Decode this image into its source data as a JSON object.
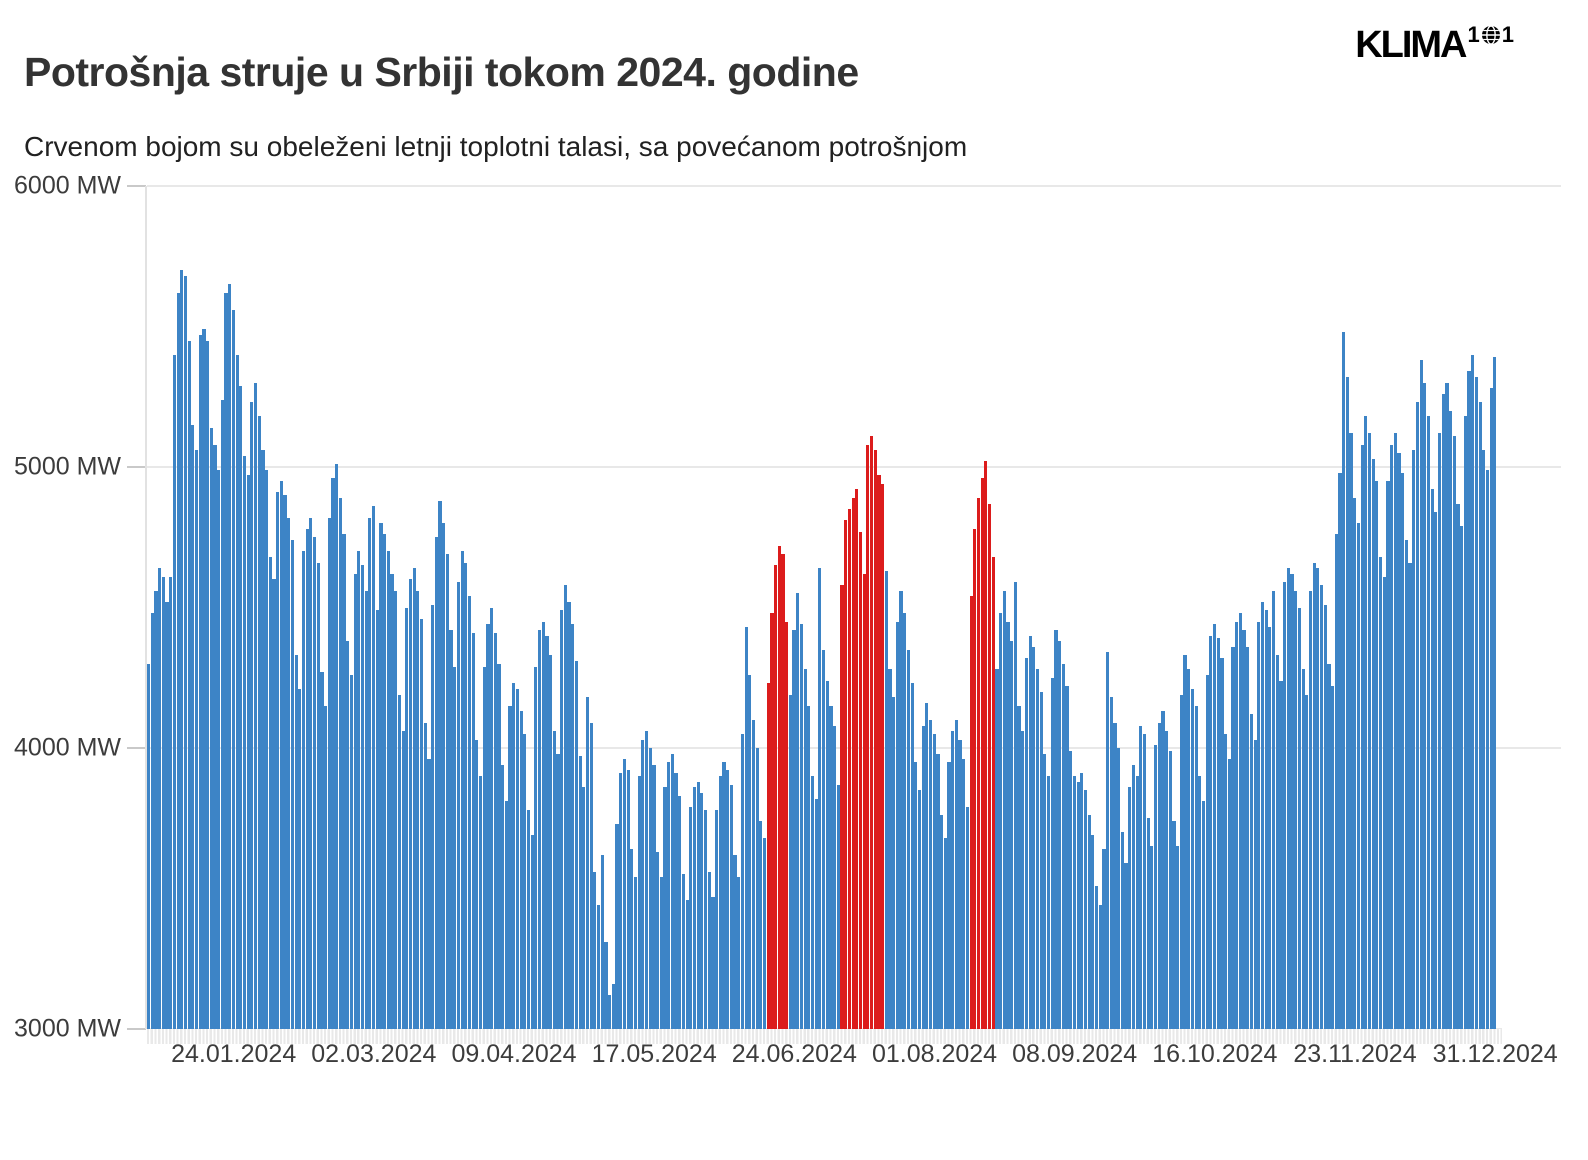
{
  "header": {
    "title": "Potrošnja struje u Srbiji tokom 2024. godine",
    "subtitle": "Crvenom bojom su obeleženi letnji toplotni talasi, sa povećanom potrošnjom",
    "logo": {
      "word": "KLIMA",
      "sup_left": "1",
      "sup_right": "1"
    }
  },
  "chart_data": {
    "type": "bar",
    "title": "Potrošnja struje u Srbiji tokom 2024. godine",
    "subtitle": "Crvenom bojom su obeleženi letnji toplotni talasi, sa povećanom potrošnjom",
    "unit": "MW",
    "x_start_date": "01.01.2024",
    "ylim": [
      3000,
      6000
    ],
    "grid": "horizontal",
    "legend": "none",
    "bar_colors": {
      "normal": "#3d84c6",
      "heatwave": "#dc1c1c"
    },
    "y_ticks": [
      {
        "value": 6000,
        "label": "6000 MW"
      },
      {
        "value": 5000,
        "label": "5000 MW"
      },
      {
        "value": 4000,
        "label": "4000 MW"
      },
      {
        "value": 3000,
        "label": "3000 MW"
      }
    ],
    "x_tick_labels": [
      {
        "day_of_year": 24,
        "label": "24.01.2024"
      },
      {
        "day_of_year": 62,
        "label": "02.03.2024"
      },
      {
        "day_of_year": 100,
        "label": "09.04.2024"
      },
      {
        "day_of_year": 138,
        "label": "17.05.2024"
      },
      {
        "day_of_year": 176,
        "label": "24.06.2024"
      },
      {
        "day_of_year": 214,
        "label": "01.08.2024"
      },
      {
        "day_of_year": 252,
        "label": "08.09.2024"
      },
      {
        "day_of_year": 290,
        "label": "16.10.2024"
      },
      {
        "day_of_year": 328,
        "label": "23.11.2024"
      },
      {
        "day_of_year": 366,
        "label": "31.12.2024"
      }
    ],
    "heatwave_day_ranges": [
      [
        169,
        174
      ],
      [
        189,
        200
      ],
      [
        224,
        230
      ]
    ],
    "values_daily_mw": [
      4300,
      4480,
      4560,
      4640,
      4610,
      4520,
      4610,
      5400,
      5620,
      5700,
      5680,
      5450,
      5150,
      5060,
      5470,
      5490,
      5450,
      5140,
      5080,
      4990,
      5240,
      5620,
      5650,
      5560,
      5400,
      5290,
      5040,
      4970,
      5230,
      5300,
      5180,
      5060,
      4990,
      4680,
      4600,
      4910,
      4950,
      4900,
      4820,
      4740,
      4330,
      4210,
      4700,
      4780,
      4820,
      4750,
      4660,
      4270,
      4150,
      4820,
      4960,
      5010,
      4890,
      4760,
      4380,
      4260,
      4620,
      4700,
      4650,
      4560,
      4820,
      4860,
      4490,
      4800,
      4760,
      4700,
      4620,
      4560,
      4190,
      4060,
      4500,
      4600,
      4640,
      4560,
      4460,
      4090,
      3960,
      4510,
      4750,
      4880,
      4800,
      4690,
      4420,
      4290,
      4590,
      4700,
      4660,
      4540,
      4410,
      4030,
      3900,
      4290,
      4440,
      4500,
      4410,
      4300,
      3940,
      3810,
      4150,
      4230,
      4210,
      4130,
      4050,
      3780,
      3690,
      4290,
      4420,
      4450,
      4400,
      4330,
      4060,
      3980,
      4490,
      4580,
      4520,
      4440,
      4310,
      3970,
      3860,
      4180,
      4090,
      3560,
      3440,
      3620,
      3310,
      3120,
      3160,
      3730,
      3910,
      3960,
      3920,
      3640,
      3540,
      3900,
      4030,
      4060,
      4000,
      3940,
      3630,
      3540,
      3860,
      3950,
      3980,
      3910,
      3830,
      3550,
      3460,
      3790,
      3860,
      3880,
      3840,
      3780,
      3560,
      3470,
      3780,
      3900,
      3950,
      3920,
      3870,
      3620,
      3540,
      4050,
      4430,
      4260,
      4100,
      4000,
      3740,
      3680,
      4230,
      4480,
      4650,
      4720,
      4690,
      4450,
      4190,
      4420,
      4550,
      4440,
      4280,
      4150,
      3900,
      3820,
      4640,
      4350,
      4240,
      4150,
      4080,
      3870,
      4580,
      4810,
      4850,
      4890,
      4920,
      4770,
      4620,
      5080,
      5110,
      5060,
      4970,
      4940,
      4630,
      4280,
      4180,
      4450,
      4560,
      4480,
      4350,
      4230,
      3950,
      3850,
      4080,
      4160,
      4100,
      4050,
      3980,
      3760,
      3680,
      3950,
      4060,
      4100,
      4030,
      3960,
      3790,
      4540,
      4780,
      4890,
      4960,
      5020,
      4870,
      4680,
      4280,
      4480,
      4560,
      4450,
      4380,
      4590,
      4150,
      4060,
      4320,
      4400,
      4360,
      4280,
      4200,
      3980,
      3900,
      4250,
      4420,
      4380,
      4300,
      4220,
      3990,
      3900,
      3880,
      3910,
      3850,
      3760,
      3690,
      3510,
      3440,
      3640,
      4340,
      4180,
      4090,
      4000,
      3700,
      3590,
      3860,
      3940,
      3900,
      4080,
      4050,
      3750,
      3650,
      4010,
      4090,
      4130,
      4060,
      3990,
      3740,
      3650,
      4190,
      4330,
      4280,
      4210,
      4150,
      3900,
      3810,
      4260,
      4400,
      4440,
      4390,
      4320,
      4050,
      3960,
      4360,
      4450,
      4480,
      4420,
      4360,
      4120,
      4030,
      4450,
      4520,
      4490,
      4430,
      4560,
      4330,
      4240,
      4590,
      4640,
      4620,
      4560,
      4500,
      4280,
      4190,
      4560,
      4660,
      4640,
      4580,
      4510,
      4300,
      4220,
      4760,
      4980,
      5480,
      5320,
      5120,
      4890,
      4800,
      5080,
      5180,
      5120,
      5030,
      4950,
      4680,
      4610,
      4950,
      5080,
      5120,
      5050,
      4980,
      4740,
      4660,
      5060,
      5230,
      5380,
      5300,
      5180,
      4920,
      4840,
      5120,
      5260,
      5300,
      5200,
      5110,
      4870,
      4790,
      5180,
      5340,
      5400,
      5320,
      5230,
      5060,
      4990,
      5280,
      5390
    ]
  }
}
